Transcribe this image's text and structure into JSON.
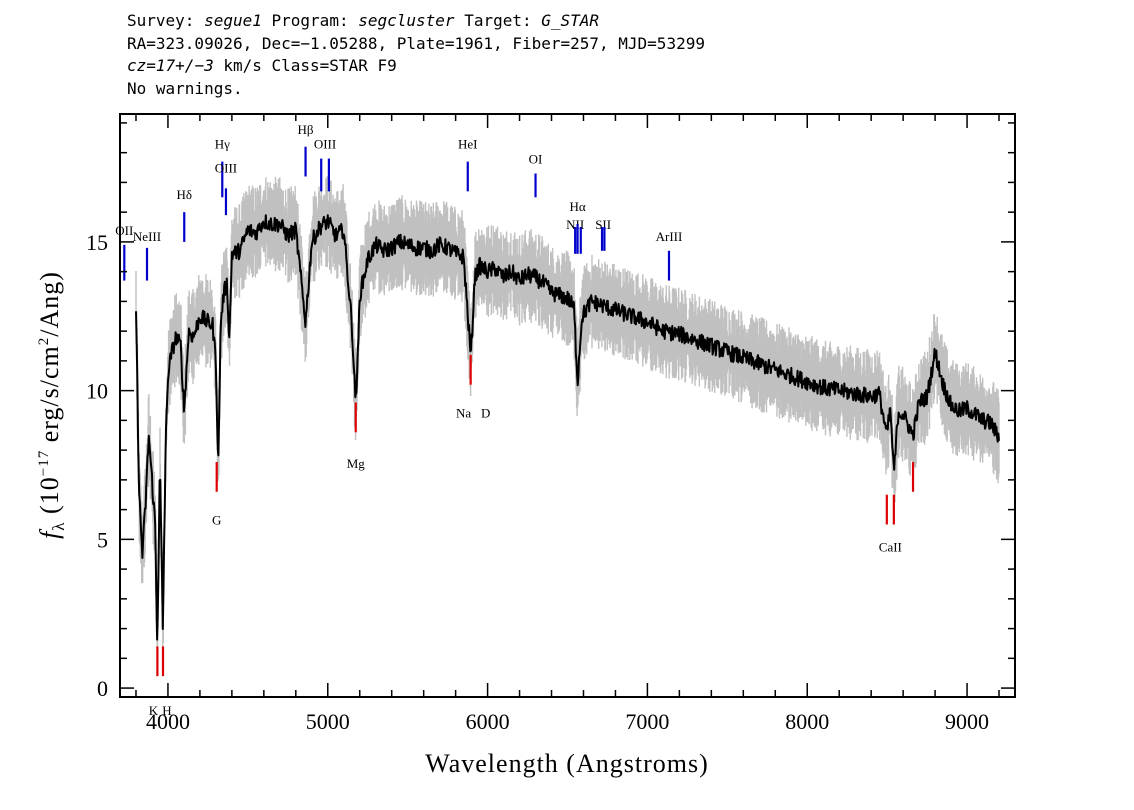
{
  "header": {
    "survey_label": "Survey:",
    "survey": "segue1",
    "program_label": "Program:",
    "program": "segcluster",
    "target_label": "Target:",
    "target": "G_STAR",
    "line2": "RA=323.09026, Dec=−1.05288, Plate=1961, Fiber=257, MJD=53299",
    "cz_label": "cz=",
    "cz_value": "17+/−3",
    "cz_rest": " km/s Class=STAR F9",
    "line4": "No warnings."
  },
  "colors": {
    "flux": "#000000",
    "error_band": "#c0c0c0",
    "emission_line_marker": "#0000cc",
    "absorption_line_marker": "#dd0000"
  },
  "chart_data": {
    "type": "line",
    "xlabel": "Wavelength (Angstroms)",
    "ylabel_parts": {
      "f": "f",
      "sub": "λ",
      "pre": " (10",
      "exp1": "−17",
      "mid": " erg/s/cm",
      "exp2": "2",
      "post": "/Ang)"
    },
    "xlim": [
      3700,
      9300
    ],
    "ylim": [
      -0.3,
      19.3
    ],
    "xticks": [
      4000,
      5000,
      6000,
      7000,
      8000,
      9000
    ],
    "yticks": [
      0,
      5,
      10,
      15
    ],
    "xtick_labels": [
      "4000",
      "5000",
      "6000",
      "7000",
      "8000",
      "9000"
    ],
    "ytick_labels": [
      "0",
      "5",
      "10",
      "15"
    ],
    "series": [
      {
        "role": "flux",
        "x": [
          3800,
          3820,
          3840,
          3860,
          3880,
          3900,
          3920,
          3933,
          3950,
          3968,
          3985,
          4000,
          4020,
          4050,
          4080,
          4101,
          4130,
          4160,
          4200,
          4250,
          4280,
          4300,
          4315,
          4330,
          4350,
          4370,
          4384,
          4400,
          4450,
          4500,
          4550,
          4600,
          4650,
          4700,
          4750,
          4800,
          4861,
          4900,
          4950,
          5000,
          5050,
          5100,
          5150,
          5172,
          5183,
          5200,
          5250,
          5300,
          5350,
          5400,
          5450,
          5500,
          5550,
          5600,
          5650,
          5700,
          5750,
          5800,
          5850,
          5890,
          5896,
          5920,
          5950,
          6000,
          6050,
          6100,
          6150,
          6200,
          6250,
          6300,
          6350,
          6400,
          6450,
          6500,
          6540,
          6563,
          6590,
          6650,
          6700,
          6750,
          6800,
          6850,
          6900,
          6950,
          7000,
          7100,
          7200,
          7300,
          7400,
          7500,
          7600,
          7700,
          7800,
          7900,
          8000,
          8100,
          8200,
          8300,
          8400,
          8450,
          8498,
          8520,
          8542,
          8570,
          8600,
          8662,
          8700,
          8750,
          8800,
          8850,
          8900,
          8950,
          9000,
          9050,
          9100,
          9150,
          9200
        ],
        "y": [
          12.8,
          6.5,
          4.5,
          6.2,
          8.5,
          7.0,
          5.5,
          1.5,
          7.5,
          2.0,
          8.0,
          10.5,
          11.2,
          11.8,
          11.5,
          9.3,
          12.0,
          11.8,
          12.5,
          12.3,
          12.2,
          11.0,
          7.3,
          12.3,
          13.3,
          13.6,
          11.7,
          14.6,
          14.7,
          15.4,
          15.3,
          15.7,
          15.6,
          15.6,
          15.2,
          15.4,
          12.3,
          15.0,
          15.5,
          15.7,
          15.2,
          15.4,
          12.3,
          9.8,
          10.3,
          13.2,
          14.4,
          14.9,
          14.7,
          14.8,
          15.0,
          14.9,
          14.8,
          14.8,
          14.7,
          14.9,
          14.8,
          14.6,
          14.5,
          11.5,
          11.2,
          13.8,
          14.2,
          14.0,
          14.1,
          13.8,
          14.0,
          13.7,
          13.9,
          13.8,
          13.6,
          13.3,
          13.2,
          13.1,
          12.8,
          10.3,
          12.5,
          13.0,
          12.9,
          12.8,
          12.7,
          12.6,
          12.5,
          12.4,
          12.3,
          12.0,
          11.9,
          11.7,
          11.5,
          11.3,
          11.1,
          10.9,
          10.7,
          10.5,
          10.3,
          10.1,
          10.0,
          9.9,
          9.8,
          9.9,
          8.5,
          9.4,
          7.2,
          9.3,
          9.2,
          8.5,
          9.6,
          9.8,
          11.3,
          10.2,
          9.5,
          9.3,
          9.4,
          9.2,
          9.0,
          8.9,
          8.4
        ]
      }
    ],
    "emission_lines": [
      {
        "label": "OII",
        "x": 3727
      },
      {
        "label": "NeIII",
        "x": 3869
      },
      {
        "label": "Hδ",
        "x": 4102
      },
      {
        "label": "Hγ",
        "x": 4340
      },
      {
        "label": "OIII",
        "x": 4363
      },
      {
        "label": "Hβ",
        "x": 4861
      },
      {
        "label": "OIII",
        "x": 4959
      },
      {
        "label": "OIII",
        "x": 5007
      },
      {
        "label": "HeI",
        "x": 5876
      },
      {
        "label": "OI",
        "x": 6300
      },
      {
        "label": "NII",
        "x": 6548
      },
      {
        "label": "Hα",
        "x": 6563
      },
      {
        "label": "NII",
        "x": 6583
      },
      {
        "label": "SII",
        "x": 6716
      },
      {
        "label": "SII",
        "x": 6731
      },
      {
        "label": "ArIII",
        "x": 7135
      }
    ],
    "absorption_lines": [
      {
        "label": "K",
        "x": 3934
      },
      {
        "label": "H",
        "x": 3969
      },
      {
        "label": "G",
        "x": 4305
      },
      {
        "label": "Mg",
        "x": 5175
      },
      {
        "label": "Na",
        "x": 5894
      },
      {
        "label": "D",
        "x": 5894
      },
      {
        "label": "CaII",
        "x": 8498
      },
      {
        "label": "CaII",
        "x": 8542
      },
      {
        "label": "CaII",
        "x": 8662
      }
    ]
  }
}
